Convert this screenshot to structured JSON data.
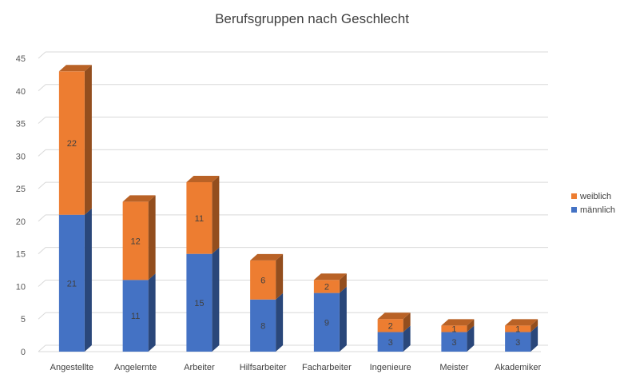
{
  "chart_data": {
    "type": "bar",
    "stacked": true,
    "style_3d": true,
    "title": "Berufsgruppen nach Geschlecht",
    "categories": [
      "Angestellte",
      "Angelernte",
      "Arbeiter",
      "Hilfsarbeiter",
      "Facharbeiter",
      "Ingenieure",
      "Meister",
      "Akademiker"
    ],
    "series": [
      {
        "name": "männlich",
        "values": [
          21,
          11,
          15,
          8,
          9,
          3,
          3,
          3
        ],
        "color": "#4472C4"
      },
      {
        "name": "weiblich",
        "values": [
          22,
          12,
          11,
          6,
          2,
          2,
          1,
          1
        ],
        "color": "#ED7D31"
      }
    ],
    "ylim": [
      0,
      45
    ],
    "yticks": [
      0,
      5,
      10,
      15,
      20,
      25,
      30,
      35,
      40,
      45
    ],
    "grid": true,
    "legend_position": "right",
    "data_labels": true
  }
}
